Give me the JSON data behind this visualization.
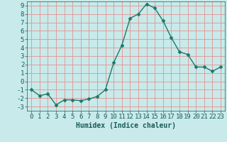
{
  "x": [
    0,
    1,
    2,
    3,
    4,
    5,
    6,
    7,
    8,
    9,
    10,
    11,
    12,
    13,
    14,
    15,
    16,
    17,
    18,
    19,
    20,
    21,
    22,
    23
  ],
  "y": [
    -1.0,
    -1.7,
    -1.5,
    -2.8,
    -2.2,
    -2.2,
    -2.3,
    -2.1,
    -1.8,
    -1.0,
    2.2,
    4.3,
    7.5,
    8.0,
    9.2,
    8.7,
    7.2,
    5.2,
    3.5,
    3.2,
    1.7,
    1.7,
    1.2,
    1.7
  ],
  "line_color": "#1a7a6a",
  "marker": "D",
  "marker_size": 2.5,
  "bg_color": "#c8eaea",
  "grid_color": "#e89090",
  "title": "",
  "xlabel": "Humidex (Indice chaleur)",
  "ylabel": "",
  "ylim": [
    -3.5,
    9.5
  ],
  "xlim": [
    -0.5,
    23.5
  ],
  "yticks": [
    -3,
    -2,
    -1,
    0,
    1,
    2,
    3,
    4,
    5,
    6,
    7,
    8,
    9
  ],
  "xticks": [
    0,
    1,
    2,
    3,
    4,
    5,
    6,
    7,
    8,
    9,
    10,
    11,
    12,
    13,
    14,
    15,
    16,
    17,
    18,
    19,
    20,
    21,
    22,
    23
  ],
  "font_color": "#1a5a5a",
  "xlabel_fontsize": 7,
  "tick_fontsize": 6.5,
  "line_width": 1.0
}
